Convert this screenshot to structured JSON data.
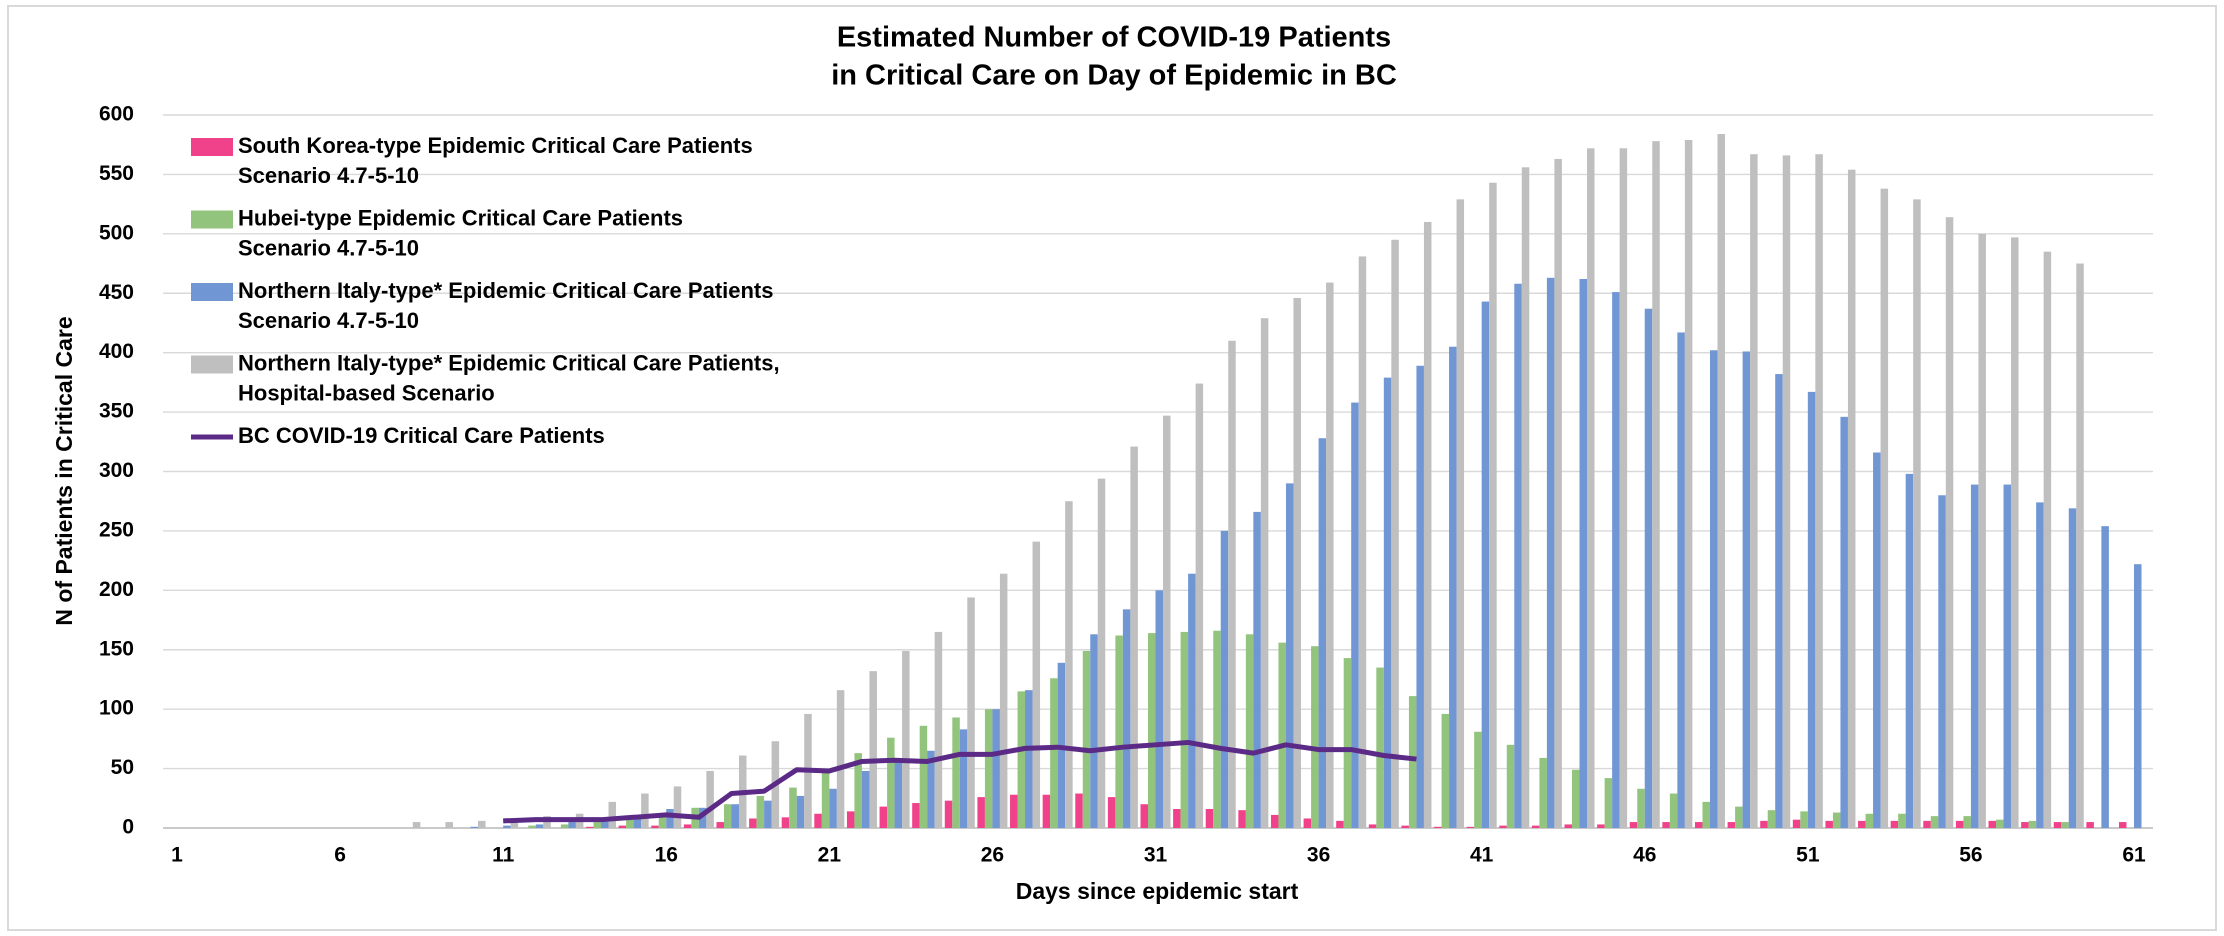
{
  "chart_data": {
    "type": "bar",
    "title": [
      "Estimated Number of COVID-19 Patients",
      "in Critical Care on Day of Epidemic in BC"
    ],
    "x_label": "Days since epidemic start",
    "y_label": "N of Patients in Critical Care",
    "categories": [
      1,
      null,
      null,
      null,
      null,
      6,
      null,
      null,
      null,
      null,
      11,
      null,
      null,
      null,
      null,
      16,
      null,
      null,
      null,
      null,
      21,
      null,
      null,
      null,
      null,
      26,
      null,
      null,
      null,
      null,
      31,
      null,
      null,
      null,
      null,
      36,
      null,
      null,
      null,
      null,
      41,
      null,
      null,
      null,
      null,
      46,
      null,
      null,
      null,
      null,
      51,
      null,
      null,
      null,
      null,
      56,
      null,
      null,
      null,
      null,
      61
    ],
    "ylim": [
      0,
      600
    ],
    "yticks": [
      0,
      50,
      100,
      150,
      200,
      250,
      300,
      350,
      400,
      450,
      500,
      550,
      600
    ],
    "grid": true,
    "legend": "top-left",
    "series": [
      {
        "name": "South Korea-type Epidemic Critical Care Patients\nScenario 4.7-5-10",
        "color": "#f0428a",
        "values": [
          null,
          null,
          null,
          null,
          null,
          null,
          null,
          null,
          null,
          null,
          null,
          null,
          null,
          1,
          2,
          2,
          3,
          5,
          8,
          9,
          12,
          14,
          18,
          21,
          23,
          26,
          28,
          28,
          29,
          26,
          20,
          16,
          16,
          15,
          11,
          8,
          6,
          3,
          2,
          1,
          1,
          2,
          2,
          3,
          3,
          5,
          5,
          5,
          5,
          6,
          7,
          6,
          6,
          6,
          6,
          6,
          6,
          5,
          5,
          5,
          5
        ]
      },
      {
        "name": "Hubei-type Epidemic Critical Care Patients\nScenario 4.7-5-10",
        "color": "#93c47d",
        "values": [
          null,
          null,
          null,
          null,
          null,
          null,
          null,
          null,
          null,
          null,
          null,
          2,
          3,
          5,
          8,
          12,
          17,
          20,
          27,
          34,
          48,
          63,
          76,
          86,
          93,
          100,
          115,
          126,
          149,
          162,
          164,
          165,
          166,
          163,
          156,
          153,
          143,
          135,
          111,
          96,
          81,
          70,
          59,
          49,
          42,
          33,
          29,
          22,
          18,
          15,
          14,
          13,
          12,
          12,
          10,
          10,
          7,
          6,
          5,
          null,
          null
        ]
      },
      {
        "name": "Northern Italy-type* Epidemic Critical Care Patients\nScenario 4.7-5-10",
        "color": "#7096d4",
        "values": [
          null,
          null,
          null,
          null,
          null,
          null,
          null,
          null,
          null,
          1,
          2,
          3,
          5,
          7,
          10,
          16,
          17,
          20,
          23,
          27,
          33,
          48,
          58,
          65,
          83,
          100,
          116,
          139,
          163,
          184,
          200,
          214,
          250,
          266,
          290,
          328,
          358,
          379,
          389,
          405,
          443,
          458,
          463,
          462,
          451,
          437,
          417,
          402,
          401,
          382,
          367,
          346,
          316,
          298,
          280,
          289,
          289,
          274,
          269,
          254,
          222
        ]
      },
      {
        "name": "Northern Italy-type* Epidemic Critical Care Patients,\nHospital-based Scenario",
        "color": "#bfbfbf",
        "values": [
          null,
          null,
          null,
          null,
          null,
          null,
          null,
          5,
          5,
          6,
          7,
          10,
          12,
          22,
          29,
          35,
          48,
          61,
          73,
          96,
          116,
          132,
          149,
          165,
          194,
          214,
          241,
          275,
          294,
          321,
          347,
          374,
          410,
          429,
          446,
          459,
          481,
          495,
          510,
          529,
          543,
          556,
          563,
          572,
          572,
          578,
          579,
          584,
          567,
          566,
          567,
          554,
          538,
          529,
          514,
          500,
          497,
          485,
          475,
          null,
          null
        ]
      },
      {
        "name": "BC COVID-19 Critical Care Patients",
        "color": "#5b2a86",
        "type": "line",
        "values": [
          null,
          null,
          null,
          null,
          null,
          null,
          null,
          null,
          null,
          null,
          6,
          7,
          7,
          7,
          9,
          11,
          9,
          29,
          31,
          49,
          48,
          56,
          57,
          56,
          62,
          62,
          67,
          68,
          65,
          68,
          70,
          72,
          67,
          63,
          70,
          66,
          66,
          61,
          58,
          null,
          null,
          null,
          null,
          null,
          null,
          null,
          null,
          null,
          null,
          null,
          null,
          null,
          null,
          null,
          null,
          null,
          null,
          null,
          null,
          null,
          null
        ]
      }
    ]
  }
}
